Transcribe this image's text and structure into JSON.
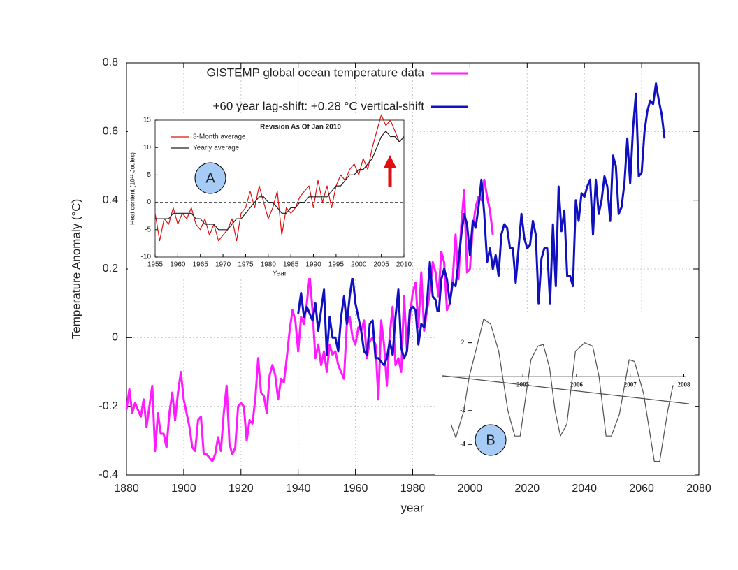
{
  "chart_data": [
    {
      "type": "line",
      "xlabel": "year",
      "ylabel": "Temperature Anomaly (°C)",
      "xlim": [
        1880,
        2080
      ],
      "ylim": [
        -0.4,
        0.8
      ],
      "xticks": [
        1880,
        1900,
        1920,
        1940,
        1960,
        1980,
        2000,
        2020,
        2040,
        2060,
        2080
      ],
      "yticks": [
        -0.4,
        -0.2,
        0,
        0.2,
        0.4,
        0.6,
        0.8
      ],
      "grid": true,
      "legend": "top",
      "series": [
        {
          "name": "GISTEMP global ocean temperature data",
          "color": "#ff1aff",
          "x": [
            1880,
            1881,
            1882,
            1883,
            1884,
            1885,
            1886,
            1887,
            1888,
            1889,
            1890,
            1891,
            1892,
            1893,
            1894,
            1895,
            1896,
            1897,
            1898,
            1899,
            1900,
            1901,
            1902,
            1903,
            1904,
            1905,
            1906,
            1907,
            1908,
            1909,
            1910,
            1911,
            1912,
            1913,
            1914,
            1915,
            1916,
            1917,
            1918,
            1919,
            1920,
            1921,
            1922,
            1923,
            1924,
            1925,
            1926,
            1927,
            1928,
            1929,
            1930,
            1931,
            1932,
            1933,
            1934,
            1935,
            1936,
            1937,
            1938,
            1939,
            1940,
            1941,
            1942,
            1943,
            1944,
            1945,
            1946,
            1947,
            1948,
            1949,
            1950,
            1951,
            1952,
            1953,
            1954,
            1955,
            1956,
            1957,
            1958,
            1959,
            1960,
            1961,
            1962,
            1963,
            1964,
            1965,
            1966,
            1967,
            1968,
            1969,
            1970,
            1971,
            1972,
            1973,
            1974,
            1975,
            1976,
            1977,
            1978,
            1979,
            1980,
            1981,
            1982,
            1983,
            1984,
            1985,
            1986,
            1987,
            1988,
            1989,
            1990,
            1991,
            1992,
            1993,
            1994,
            1995,
            1996,
            1997,
            1998,
            1999,
            2000,
            2001,
            2002,
            2003,
            2004,
            2005,
            2006,
            2007,
            2008
          ],
          "values": [
            -0.21,
            -0.15,
            -0.22,
            -0.19,
            -0.21,
            -0.23,
            -0.18,
            -0.26,
            -0.2,
            -0.14,
            -0.33,
            -0.22,
            -0.28,
            -0.28,
            -0.32,
            -0.22,
            -0.16,
            -0.24,
            -0.16,
            -0.1,
            -0.18,
            -0.22,
            -0.26,
            -0.32,
            -0.33,
            -0.24,
            -0.23,
            -0.34,
            -0.34,
            -0.35,
            -0.36,
            -0.34,
            -0.29,
            -0.33,
            -0.22,
            -0.14,
            -0.31,
            -0.34,
            -0.32,
            -0.2,
            -0.19,
            -0.2,
            -0.3,
            -0.24,
            -0.25,
            -0.18,
            -0.06,
            -0.16,
            -0.17,
            -0.22,
            -0.11,
            -0.08,
            -0.11,
            -0.18,
            -0.12,
            -0.13,
            -0.06,
            0.02,
            0.08,
            0.05,
            -0.04,
            0.06,
            0.04,
            0.1,
            0.18,
            0.08,
            -0.06,
            -0.02,
            -0.08,
            -0.04,
            -0.1,
            -0.02,
            -0.05,
            -0.04,
            -0.08,
            -0.1,
            -0.12,
            0.04,
            0.06,
            0.0,
            -0.02,
            0.03,
            0.02,
            0.05,
            -0.06,
            -0.01,
            0.0,
            -0.02,
            -0.18,
            0.05,
            -0.02,
            -0.14,
            0.01,
            0.09,
            -0.08,
            -0.06,
            -0.1,
            0.12,
            -0.04,
            0.06,
            0.13,
            0.16,
            0.03,
            0.19,
            0.02,
            0.08,
            0.13,
            0.22,
            0.19,
            0.12,
            0.25,
            0.22,
            0.08,
            0.1,
            0.17,
            0.3,
            0.17,
            0.33,
            0.43,
            0.19,
            0.2,
            0.32,
            0.38,
            0.41,
            0.4,
            0.46,
            0.41,
            0.37,
            0.3
          ]
        },
        {
          "name": "+60 year lag-shift: +0.28 °C vertical-shift",
          "color": "#1010c0",
          "x": [
            1940,
            1941,
            1942,
            1943,
            1944,
            1945,
            1946,
            1947,
            1948,
            1949,
            1950,
            1951,
            1952,
            1953,
            1954,
            1955,
            1956,
            1957,
            1958,
            1959,
            1960,
            1961,
            1962,
            1963,
            1964,
            1965,
            1966,
            1967,
            1968,
            1969,
            1970,
            1971,
            1972,
            1973,
            1974,
            1975,
            1976,
            1977,
            1978,
            1979,
            1980,
            1981,
            1982,
            1983,
            1984,
            1985,
            1986,
            1987,
            1988,
            1989,
            1990,
            1991,
            1992,
            1993,
            1994,
            1995,
            1996,
            1997,
            1998,
            1999,
            2000,
            2001,
            2002,
            2003,
            2004,
            2005,
            2006,
            2007,
            2008,
            2009,
            2010,
            2011,
            2012,
            2013,
            2014,
            2015,
            2016,
            2017,
            2018,
            2019,
            2020,
            2021,
            2022,
            2023,
            2024,
            2025,
            2026,
            2027,
            2028,
            2029,
            2030,
            2031,
            2032,
            2033,
            2034,
            2035,
            2036,
            2037,
            2038,
            2039,
            2040,
            2041,
            2042,
            2043,
            2044,
            2045,
            2046,
            2047,
            2048,
            2049,
            2050,
            2051,
            2052,
            2053,
            2054,
            2055,
            2056,
            2057,
            2058,
            2059,
            2060,
            2061,
            2062,
            2063,
            2064,
            2065,
            2066,
            2067,
            2068
          ],
          "values": [
            0.07,
            0.13,
            0.06,
            0.09,
            0.07,
            0.05,
            0.1,
            0.02,
            0.08,
            0.14,
            -0.05,
            0.06,
            0.0,
            0.0,
            -0.04,
            0.06,
            0.12,
            0.04,
            0.12,
            0.18,
            0.1,
            0.06,
            0.02,
            -0.04,
            -0.05,
            0.04,
            0.05,
            -0.06,
            -0.06,
            -0.07,
            -0.08,
            -0.06,
            -0.01,
            -0.05,
            0.06,
            0.14,
            -0.03,
            -0.06,
            -0.04,
            0.08,
            0.09,
            0.08,
            -0.02,
            0.04,
            0.03,
            0.1,
            0.22,
            0.12,
            0.11,
            0.06,
            0.17,
            0.2,
            0.17,
            0.1,
            0.16,
            0.15,
            0.22,
            0.3,
            0.36,
            0.33,
            0.24,
            0.34,
            0.32,
            0.38,
            0.46,
            0.36,
            0.22,
            0.26,
            0.2,
            0.24,
            0.18,
            0.3,
            0.33,
            0.32,
            0.26,
            0.26,
            0.16,
            0.26,
            0.36,
            0.29,
            0.26,
            0.27,
            0.34,
            0.3,
            0.1,
            0.23,
            0.26,
            0.26,
            0.1,
            0.33,
            0.15,
            0.44,
            0.31,
            0.37,
            0.18,
            0.18,
            0.15,
            0.4,
            0.34,
            0.42,
            0.41,
            0.44,
            0.46,
            0.3,
            0.46,
            0.36,
            0.4,
            0.47,
            0.44,
            0.34,
            0.53,
            0.5,
            0.36,
            0.38,
            0.45,
            0.58,
            0.45,
            0.61,
            0.71,
            0.47,
            0.48,
            0.6,
            0.66,
            0.69,
            0.68,
            0.74,
            0.69,
            0.65,
            0.58
          ]
        }
      ]
    },
    {
      "type": "line",
      "annotation": "A",
      "title": "Revision As Of Jan 2010",
      "xlabel": "Year",
      "ylabel": "Heat content (10²² Joules)",
      "xlim": [
        1955,
        2010
      ],
      "ylim": [
        -10,
        15
      ],
      "xticks": [
        1955,
        1960,
        1965,
        1970,
        1975,
        1980,
        1985,
        1990,
        1995,
        2000,
        2005,
        2010
      ],
      "yticks": [
        -10,
        -5,
        0,
        5,
        10,
        15
      ],
      "legend": "upper left",
      "series": [
        {
          "name": "3-Month average",
          "color": "#e01010",
          "x": [
            1955,
            1956,
            1957,
            1958,
            1959,
            1960,
            1961,
            1962,
            1963,
            1964,
            1965,
            1966,
            1967,
            1968,
            1969,
            1970,
            1971,
            1972,
            1973,
            1974,
            1975,
            1976,
            1977,
            1978,
            1979,
            1980,
            1981,
            1982,
            1983,
            1984,
            1985,
            1986,
            1987,
            1988,
            1989,
            1990,
            1991,
            1992,
            1993,
            1994,
            1995,
            1996,
            1997,
            1998,
            1999,
            2000,
            2001,
            2002,
            2003,
            2004,
            2005,
            2006,
            2007,
            2008,
            2009,
            2010
          ],
          "values": [
            -2,
            -7,
            -3,
            -4,
            -1,
            -4,
            -2,
            -3,
            -1,
            -4,
            -5,
            -3,
            -6,
            -4,
            -7,
            -6,
            -5,
            -3,
            -7,
            -2,
            -1,
            2,
            -1,
            3,
            0,
            -3,
            -1,
            2,
            -6,
            -1,
            -2,
            -1,
            1,
            2,
            3,
            -1,
            4,
            0,
            3,
            -1,
            3,
            5,
            4,
            6,
            7,
            5,
            8,
            6,
            10,
            13,
            16,
            14,
            15,
            13,
            11,
            12
          ]
        },
        {
          "name": "Yearly average",
          "color": "#202020",
          "x": [
            1955,
            1956,
            1957,
            1958,
            1959,
            1960,
            1961,
            1962,
            1963,
            1964,
            1965,
            1966,
            1967,
            1968,
            1969,
            1970,
            1971,
            1972,
            1973,
            1974,
            1975,
            1976,
            1977,
            1978,
            1979,
            1980,
            1981,
            1982,
            1983,
            1984,
            1985,
            1986,
            1987,
            1988,
            1989,
            1990,
            1991,
            1992,
            1993,
            1994,
            1995,
            1996,
            1997,
            1998,
            1999,
            2000,
            2001,
            2002,
            2003,
            2004,
            2005,
            2006,
            2007,
            2008,
            2009,
            2010
          ],
          "values": [
            -3,
            -3,
            -3,
            -3,
            -2,
            -2,
            -2,
            -2,
            -2,
            -3,
            -3,
            -4,
            -4,
            -4,
            -5,
            -5,
            -5,
            -4,
            -3,
            -3,
            -2,
            -1,
            0,
            1,
            1,
            0,
            0,
            -1,
            -2,
            -2,
            -1,
            -1,
            0,
            0,
            1,
            1,
            1,
            1,
            1,
            2,
            3,
            3,
            4,
            5,
            5,
            6,
            6,
            7,
            8,
            10,
            12,
            13,
            12,
            12,
            11,
            12
          ]
        }
      ]
    },
    {
      "type": "line",
      "annotation": "B",
      "xlim": [
        2003.5,
        2008.15
      ],
      "ylim": [
        -5.8,
        3.8
      ],
      "xticks": [
        2005,
        2006,
        2007,
        2008
      ],
      "yticks": [
        -4,
        -2,
        2
      ],
      "series": [
        {
          "color": "#505050",
          "x": [
            2003.66,
            2003.75,
            2003.9,
            2004.0,
            2004.2,
            2004.27,
            2004.4,
            2004.55,
            2004.72,
            2004.85,
            2004.95,
            2005.15,
            2005.28,
            2005.38,
            2005.5,
            2005.6,
            2005.7,
            2005.82,
            2005.98,
            2006.15,
            2006.3,
            2006.42,
            2006.55,
            2006.65,
            2006.8,
            2006.98,
            2007.08,
            2007.25,
            2007.45,
            2007.55,
            2007.7,
            2007.8
          ],
          "values": [
            -2.8,
            -3.6,
            -2.0,
            0.0,
            2.5,
            3.4,
            3.1,
            1.5,
            -2.0,
            -3.5,
            -3.5,
            1.0,
            1.8,
            1.9,
            0.5,
            -2.0,
            -3.5,
            -2.8,
            1.5,
            2.0,
            1.8,
            0.0,
            -3.5,
            -3.5,
            -2.2,
            1.0,
            0.9,
            -1.0,
            -5.0,
            -5.0,
            -2.0,
            -0.5
          ]
        },
        {
          "color": "#505050",
          "x": [
            2003.5,
            2008.1
          ],
          "values": [
            0.06,
            -1.6
          ]
        }
      ]
    }
  ]
}
